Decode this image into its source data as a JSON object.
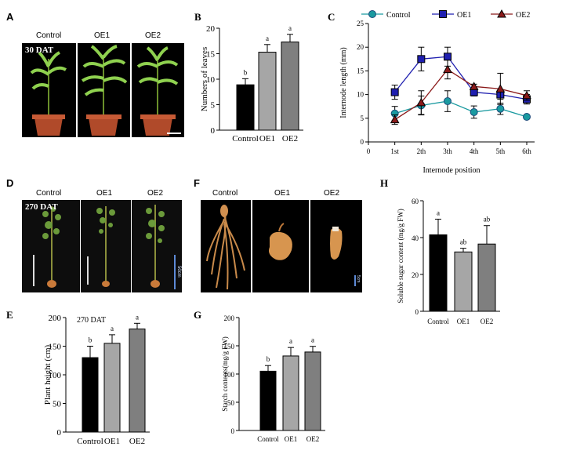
{
  "panels": {
    "A": {
      "letter": "A",
      "labels": [
        "Control",
        "OE1",
        "OE2"
      ],
      "dat": "30 DAT"
    },
    "D": {
      "letter": "D",
      "labels": [
        "Control",
        "OE1",
        "OE2"
      ],
      "dat": "270 DAT",
      "scale": "50cm"
    },
    "F": {
      "letter": "F",
      "labels": [
        "Control",
        "OE1",
        "OE2"
      ],
      "scale": "5cm"
    }
  },
  "colors": {
    "control": "#000000",
    "oe1": "#a6a6a6",
    "oe2": "#7f7f7f",
    "line_control": "#1a9aa0",
    "line_oe1": "#1f1fb0",
    "line_oe2": "#8b1a1a"
  },
  "chart_data": [
    {
      "id": "B",
      "letter": "B",
      "type": "bar",
      "categories": [
        "Control",
        "OE1",
        "OE2"
      ],
      "values": [
        8.9,
        15.3,
        17.3
      ],
      "errors": [
        1.2,
        1.5,
        1.5
      ],
      "sig": [
        "b",
        "a",
        "a"
      ],
      "ylabel": "Numbers of leaves",
      "xlabel": "",
      "ylim": [
        0,
        20
      ],
      "yticks": [
        0,
        5,
        10,
        15,
        20
      ],
      "annotation": ""
    },
    {
      "id": "C",
      "letter": "C",
      "type": "line",
      "categories": [
        "1st",
        "2th",
        "3th",
        "4th",
        "5th",
        "6th"
      ],
      "xticks": [
        "0",
        "1st",
        "2th",
        "3th",
        "4th",
        "5th",
        "6th"
      ],
      "series": [
        {
          "name": "Control",
          "values": [
            6.0,
            7.7,
            8.6,
            6.3,
            7.0,
            5.3
          ],
          "errors": [
            1.5,
            2.0,
            2.2,
            1.3,
            1.2,
            0.4
          ],
          "marker": "circle"
        },
        {
          "name": "OE1",
          "values": [
            10.5,
            17.5,
            18.0,
            10.5,
            10.0,
            9.0
          ],
          "errors": [
            1.5,
            2.5,
            2.0,
            0.8,
            1.0,
            1.0
          ],
          "marker": "square"
        },
        {
          "name": "OE2",
          "values": [
            4.7,
            8.3,
            15.3,
            11.7,
            11.2,
            9.8
          ],
          "errors": [
            1.0,
            2.5,
            2.0,
            0.5,
            3.3,
            1.0
          ],
          "marker": "triangle"
        }
      ],
      "ylabel": "Internode length (mm)",
      "xlabel": "Internode position",
      "ylim": [
        0,
        25
      ],
      "yticks": [
        0,
        5,
        10,
        15,
        20,
        25
      ],
      "legend": "top"
    },
    {
      "id": "E",
      "letter": "E",
      "type": "bar",
      "categories": [
        "Control",
        "OE1",
        "OE2"
      ],
      "values": [
        130,
        155,
        180
      ],
      "errors": [
        20,
        15,
        10
      ],
      "sig": [
        "b",
        "a",
        "a"
      ],
      "ylabel": "Plant height (cm)",
      "xlabel": "",
      "ylim": [
        0,
        200
      ],
      "yticks": [
        0,
        50,
        100,
        150,
        200
      ],
      "annotation": "270 DAT"
    },
    {
      "id": "G",
      "letter": "G",
      "type": "bar",
      "categories": [
        "Control",
        "OE1",
        "OE2"
      ],
      "values": [
        105,
        132,
        139
      ],
      "errors": [
        10,
        15,
        10
      ],
      "sig": [
        "b",
        "a",
        "a"
      ],
      "ylabel": "Starch contents(mg/g FW)",
      "xlabel": "",
      "ylim": [
        0,
        200
      ],
      "yticks": [
        0,
        50,
        100,
        150,
        200
      ],
      "annotation": ""
    },
    {
      "id": "H",
      "letter": "H",
      "type": "bar",
      "categories": [
        "Control",
        "OE1",
        "OE2"
      ],
      "values": [
        41.5,
        32.2,
        36.5
      ],
      "errors": [
        8.5,
        2.0,
        10.0
      ],
      "sig": [
        "a",
        "ab",
        "ab"
      ],
      "ylabel": "Soluble sugar content (mg/g FW)",
      "xlabel": "",
      "ylim": [
        0,
        60
      ],
      "yticks": [
        0,
        20,
        40,
        60
      ],
      "annotation": ""
    }
  ]
}
